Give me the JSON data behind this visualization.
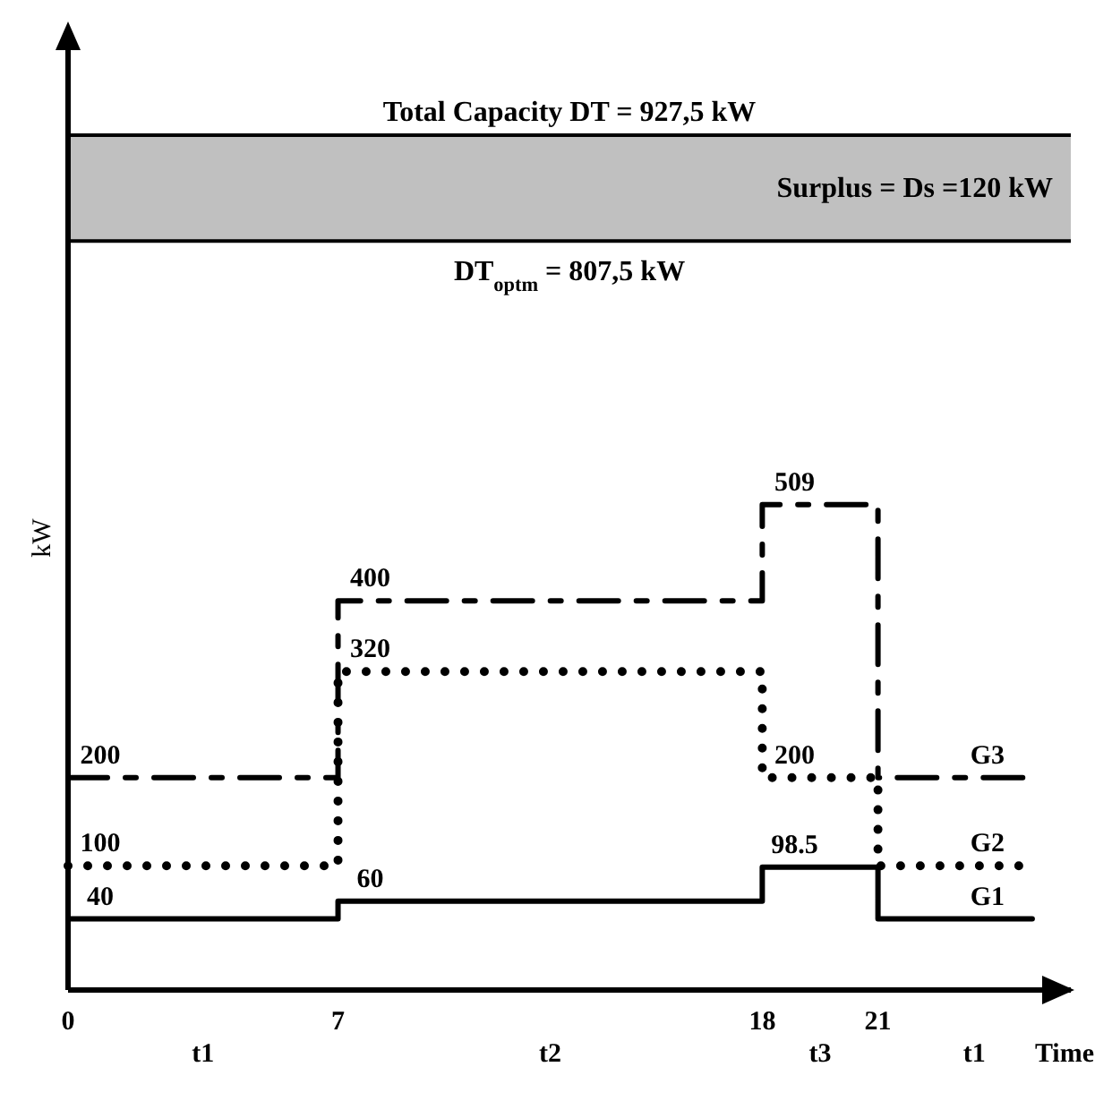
{
  "chart_data": {
    "type": "step",
    "ylabel": "kW",
    "xlabel": "Time",
    "x": [
      0,
      7,
      18,
      21,
      25
    ],
    "xlim": [
      0,
      26
    ],
    "xticks": [
      0,
      7,
      18,
      21
    ],
    "series": [
      {
        "name": "G1",
        "color": "#000000",
        "line_style": "solid",
        "values": [
          40,
          60,
          98.5,
          40,
          40
        ],
        "value_labels": [
          "40",
          "60",
          "98.5",
          null,
          null
        ]
      },
      {
        "name": "G2",
        "color": "#000000",
        "line_style": "dotted",
        "values": [
          100,
          320,
          200,
          100,
          100
        ],
        "value_labels": [
          "100",
          "320",
          "200",
          null,
          null
        ]
      },
      {
        "name": "G3",
        "color": "#000000",
        "line_style": "dashed",
        "values": [
          200,
          400,
          509,
          200,
          200
        ],
        "value_labels": [
          "200",
          "400",
          "509",
          null,
          null
        ]
      }
    ],
    "bands": [
      {
        "axis": "y",
        "from": 807.5,
        "to": 927.5,
        "label": "Surplus = Ds =120 kW",
        "color": "#c0c0c0"
      }
    ],
    "ref_lines": [
      {
        "axis": "y",
        "value": 927.5,
        "label": "Total Capacity DT =  927,5 kW"
      },
      {
        "axis": "y",
        "value": 807.5,
        "label": "DT$_{optm}$ =  807,5 kW"
      }
    ],
    "annotations": [
      "t1",
      "t2",
      "t3",
      "t1"
    ]
  }
}
